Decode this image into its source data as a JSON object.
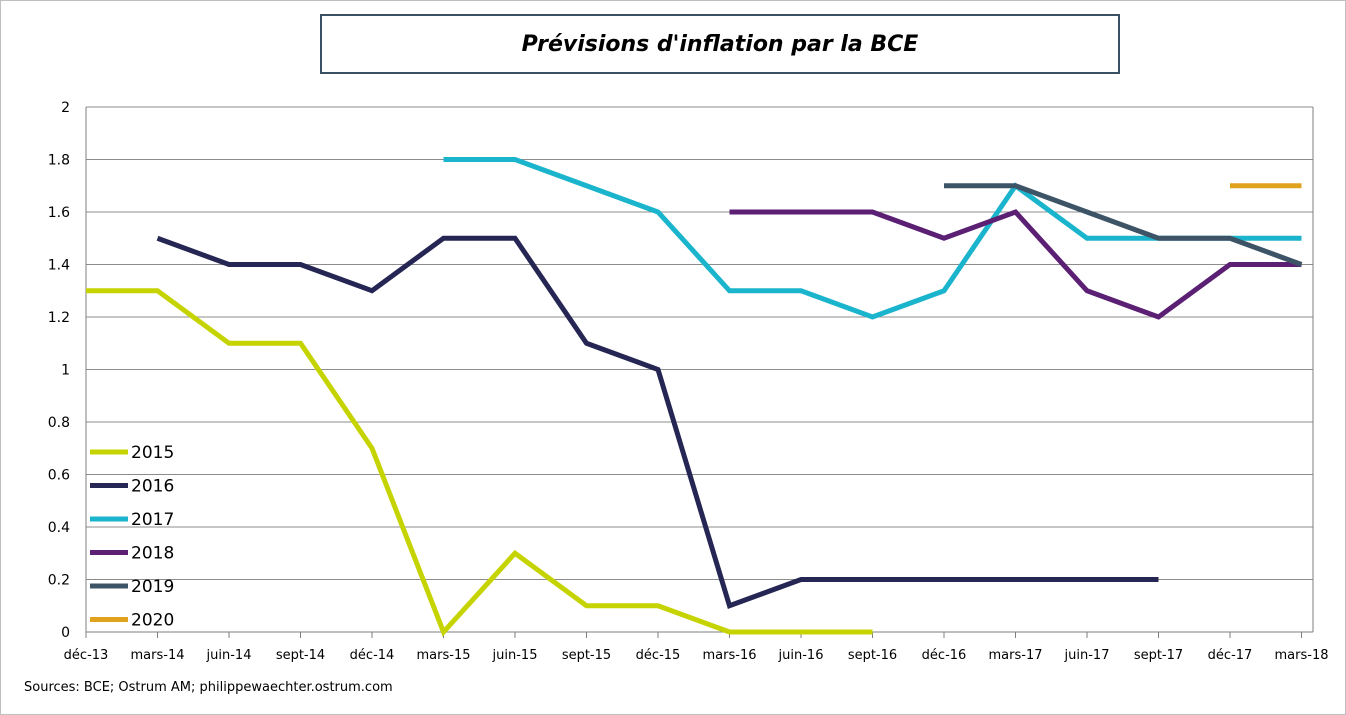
{
  "chart_data": {
    "type": "line",
    "title": "Prévisions d'inflation par la BCE",
    "source": "Sources: BCE; Ostrum AM; philippewaechter.ostrum.com",
    "categories": [
      "déc-13",
      "mars-14",
      "juin-14",
      "sept-14",
      "déc-14",
      "mars-15",
      "juin-15",
      "sept-15",
      "déc-15",
      "mars-16",
      "juin-16",
      "sept-16",
      "déc-16",
      "mars-17",
      "juin-17",
      "sept-17",
      "déc-17",
      "mars-18"
    ],
    "ylim": [
      0,
      2
    ],
    "yticks": [
      0,
      0.2,
      0.4,
      0.6,
      0.8,
      1,
      1.2,
      1.4,
      1.6,
      1.8,
      2
    ],
    "ytick_labels": [
      "0",
      "0.2",
      "0.4",
      "0.6",
      "0.8",
      "1",
      "1.2",
      "1.4",
      "1.6",
      "1.8",
      "2"
    ],
    "grid": true,
    "legend_position": "bottom-left",
    "series": [
      {
        "name": "2015",
        "color": "#c5d400",
        "values": [
          1.3,
          1.3,
          1.1,
          1.1,
          0.7,
          0.0,
          0.3,
          0.1,
          0.1,
          0.0,
          0.0,
          0.0,
          null,
          null,
          null,
          null,
          null,
          null
        ]
      },
      {
        "name": "2016",
        "color": "#262654",
        "values": [
          null,
          1.5,
          1.4,
          1.4,
          1.3,
          1.5,
          1.5,
          1.1,
          1.0,
          0.1,
          0.2,
          0.2,
          0.2,
          0.2,
          0.2,
          0.2,
          null,
          null
        ]
      },
      {
        "name": "2017",
        "color": "#1ab4cc",
        "values": [
          null,
          null,
          null,
          null,
          null,
          1.8,
          1.8,
          1.7,
          1.6,
          1.3,
          1.3,
          1.2,
          1.3,
          1.7,
          1.5,
          1.5,
          1.5,
          1.5
        ]
      },
      {
        "name": "2018",
        "color": "#5b1f74",
        "values": [
          null,
          null,
          null,
          null,
          null,
          null,
          null,
          null,
          null,
          1.6,
          1.6,
          1.6,
          1.5,
          1.6,
          1.3,
          1.2,
          1.4,
          1.4
        ]
      },
      {
        "name": "2019",
        "color": "#3d5467",
        "values": [
          null,
          null,
          null,
          null,
          null,
          null,
          null,
          null,
          null,
          null,
          null,
          null,
          1.7,
          1.7,
          1.6,
          1.5,
          1.5,
          1.4
        ]
      },
      {
        "name": "2020",
        "color": "#e0a21c",
        "values": [
          null,
          null,
          null,
          null,
          null,
          null,
          null,
          null,
          null,
          null,
          null,
          null,
          null,
          null,
          null,
          null,
          1.7,
          1.7
        ]
      }
    ]
  }
}
